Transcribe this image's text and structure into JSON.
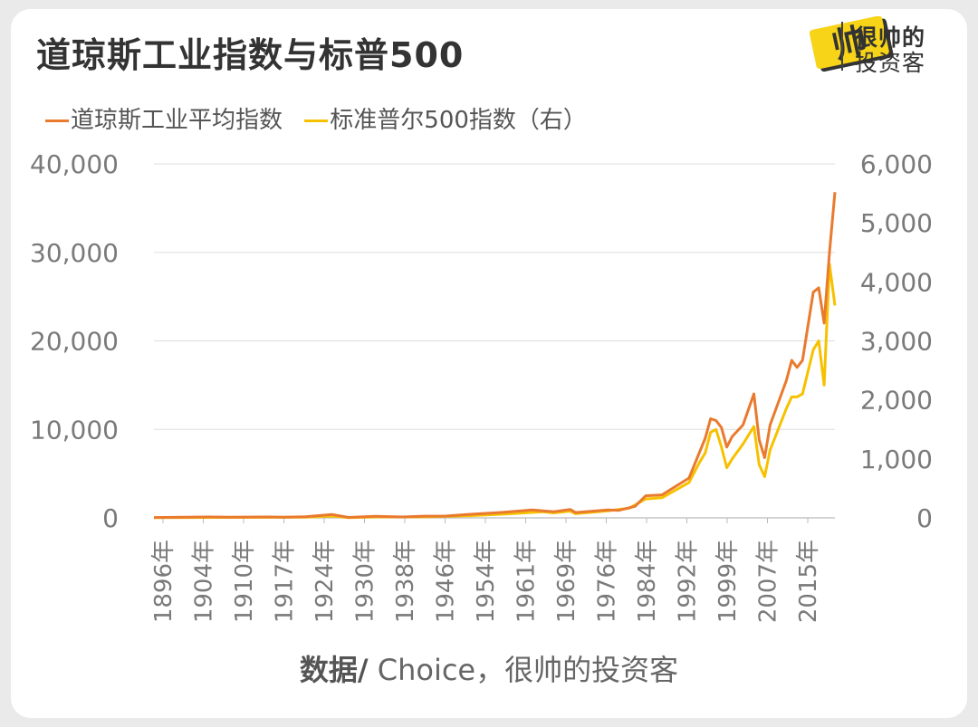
{
  "title": "道琼斯工业指数与标普500",
  "logo": {
    "mark": "帅",
    "line1": "很帅的",
    "line2": "投资客"
  },
  "source": {
    "bold": "数据/",
    "rest": " Choice，很帅的投资客"
  },
  "colors": {
    "dow": "#E97A2E",
    "sp": "#F7C100",
    "grid": "#dddddd",
    "axis_text": "#7a7a7a"
  },
  "chart_data": {
    "type": "line",
    "legend": [
      "道琼斯工业平均指数",
      "标准普尔500指数（右）"
    ],
    "legend_position": "top-left",
    "x_tick_labels": [
      "1896年",
      "1904年",
      "1910年",
      "1917年",
      "1924年",
      "1930年",
      "1938年",
      "1946年",
      "1954年",
      "1961年",
      "1969年",
      "1976年",
      "1984年",
      "1992年",
      "1999年",
      "2007年",
      "2015年"
    ],
    "y_left": {
      "ticks": [
        "0",
        "10,000",
        "20,000",
        "30,000",
        "40,000"
      ],
      "range": [
        0,
        40000
      ]
    },
    "y_right": {
      "ticks": [
        "0",
        "1,000",
        "2,000",
        "3,000",
        "4,000",
        "5,000",
        "6,000"
      ],
      "range": [
        0,
        6000
      ]
    },
    "grid": true,
    "series": [
      {
        "name": "道琼斯工业平均指数",
        "axis": "left",
        "x": [
          1896,
          1900,
          1906,
          1910,
          1917,
          1920,
          1924,
          1929,
          1932,
          1937,
          1942,
          1946,
          1950,
          1954,
          1960,
          1966,
          1970,
          1973,
          1974,
          1980,
          1982,
          1985,
          1987,
          1990,
          1995,
          1997,
          1998,
          1999,
          2000,
          2001,
          2002,
          2003,
          2005,
          2007,
          2008,
          2009,
          2010,
          2013,
          2014,
          2015,
          2016,
          2018,
          2019,
          2020,
          2021,
          2022
        ],
        "values": [
          40,
          60,
          100,
          80,
          100,
          80,
          120,
          380,
          50,
          180,
          100,
          190,
          200,
          380,
          600,
          900,
          700,
          950,
          600,
          900,
          850,
          1300,
          2500,
          2600,
          4500,
          7500,
          9000,
          11200,
          11000,
          10200,
          8000,
          9200,
          10500,
          14000,
          8800,
          6800,
          10500,
          15500,
          17800,
          17000,
          17800,
          25500,
          26000,
          22000,
          30000,
          36800
        ]
      },
      {
        "name": "标准普尔500指数（右）",
        "axis": "right",
        "x": [
          1896,
          1910,
          1924,
          1929,
          1932,
          1937,
          1946,
          1954,
          1961,
          1968,
          1970,
          1973,
          1974,
          1980,
          1984,
          1987,
          1990,
          1995,
          1997,
          1998,
          1999,
          2000,
          2001,
          2002,
          2003,
          2005,
          2007,
          2008,
          2009,
          2010,
          2013,
          2014,
          2015,
          2016,
          2018,
          2019,
          2020,
          2021,
          2022
        ],
        "values": [
          5,
          8,
          10,
          30,
          5,
          15,
          17,
          35,
          65,
          105,
          85,
          115,
          70,
          120,
          165,
          320,
          340,
          600,
          950,
          1100,
          1450,
          1500,
          1200,
          850,
          1000,
          1250,
          1550,
          900,
          700,
          1150,
          1850,
          2050,
          2050,
          2100,
          2850,
          3000,
          2250,
          4300,
          3600
        ]
      }
    ]
  }
}
